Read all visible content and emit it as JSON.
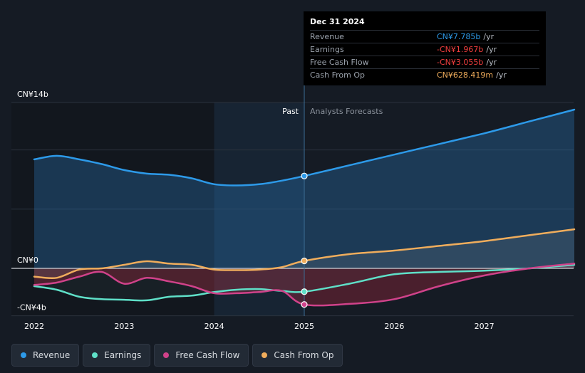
{
  "tooltip": {
    "date": "Dec 31 2024",
    "rows": [
      {
        "label": "Revenue",
        "value": "CN¥7.785b",
        "unit": "/yr",
        "color": "#2d9ae9"
      },
      {
        "label": "Earnings",
        "value": "-CN¥1.967b",
        "unit": "/yr",
        "color": "#f03e3e"
      },
      {
        "label": "Free Cash Flow",
        "value": "-CN¥3.055b",
        "unit": "/yr",
        "color": "#f03e3e"
      },
      {
        "label": "Cash From Op",
        "value": "CN¥628.419m",
        "unit": "/yr",
        "color": "#f0ad5c"
      }
    ]
  },
  "labels": {
    "past": "Past",
    "forecast": "Analysts Forecasts"
  },
  "legend": [
    {
      "label": "Revenue",
      "color": "#2d9ae9"
    },
    {
      "label": "Earnings",
      "color": "#5fe0c8"
    },
    {
      "label": "Free Cash Flow",
      "color": "#d0428a"
    },
    {
      "label": "Cash From Op",
      "color": "#f0ad5c"
    }
  ],
  "chart_data": {
    "type": "line",
    "title": "",
    "xlabel": "",
    "ylabel": "",
    "unit": "CN¥ billions",
    "ylim": [
      -4,
      14
    ],
    "xlim": [
      2021.9,
      2028.0
    ],
    "y_tick_labels": [
      {
        "value": 14,
        "label": "CN¥14b"
      },
      {
        "value": 0,
        "label": "CN¥0"
      },
      {
        "value": -4,
        "label": "-CN¥4b"
      }
    ],
    "x_ticks": [
      2022,
      2023,
      2024,
      2025,
      2026,
      2027
    ],
    "highlight_start": 2024.0,
    "forecast_start": 2025.0,
    "series": [
      {
        "name": "Revenue",
        "color": "#2d9ae9",
        "x": [
          2022.0,
          2022.25,
          2022.5,
          2022.75,
          2023.0,
          2023.25,
          2023.5,
          2023.75,
          2024.0,
          2024.25,
          2024.5,
          2024.75,
          2025.0,
          2025.5,
          2026.0,
          2026.5,
          2027.0,
          2027.5,
          2028.0
        ],
        "y": [
          9.2,
          9.5,
          9.2,
          8.8,
          8.3,
          8.0,
          7.9,
          7.6,
          7.1,
          7.0,
          7.1,
          7.4,
          7.8,
          8.7,
          9.6,
          10.5,
          11.4,
          12.4,
          13.4
        ]
      },
      {
        "name": "Earnings",
        "color": "#5fe0c8",
        "x": [
          2022.0,
          2022.25,
          2022.5,
          2022.75,
          2023.0,
          2023.25,
          2023.5,
          2023.75,
          2024.0,
          2024.25,
          2024.5,
          2024.75,
          2025.0,
          2025.5,
          2026.0,
          2026.5,
          2027.0,
          2027.5,
          2028.0
        ],
        "y": [
          -1.5,
          -1.8,
          -2.4,
          -2.6,
          -2.65,
          -2.7,
          -2.4,
          -2.3,
          -2.0,
          -1.8,
          -1.75,
          -1.9,
          -1.97,
          -1.3,
          -0.5,
          -0.3,
          -0.2,
          0.0,
          0.3
        ]
      },
      {
        "name": "Free Cash Flow",
        "color": "#d0428a",
        "x": [
          2022.0,
          2022.25,
          2022.5,
          2022.75,
          2023.0,
          2023.25,
          2023.5,
          2023.75,
          2024.0,
          2024.25,
          2024.5,
          2024.75,
          2025.0,
          2025.5,
          2026.0,
          2026.5,
          2027.0,
          2027.5,
          2028.0
        ],
        "y": [
          -1.4,
          -1.2,
          -0.7,
          -0.3,
          -1.3,
          -0.8,
          -1.1,
          -1.5,
          -2.1,
          -2.1,
          -2.0,
          -1.9,
          -3.05,
          -3.0,
          -2.6,
          -1.5,
          -0.6,
          0.0,
          0.4
        ]
      },
      {
        "name": "Cash From Op",
        "color": "#f0ad5c",
        "x": [
          2022.0,
          2022.25,
          2022.5,
          2022.75,
          2023.0,
          2023.25,
          2023.5,
          2023.75,
          2024.0,
          2024.25,
          2024.5,
          2024.75,
          2025.0,
          2025.5,
          2026.0,
          2026.5,
          2027.0,
          2027.5,
          2028.0
        ],
        "y": [
          -0.7,
          -0.8,
          -0.1,
          0.0,
          0.3,
          0.6,
          0.4,
          0.3,
          -0.1,
          -0.15,
          -0.1,
          0.1,
          0.63,
          1.2,
          1.5,
          1.9,
          2.3,
          2.8,
          3.3
        ]
      }
    ]
  }
}
